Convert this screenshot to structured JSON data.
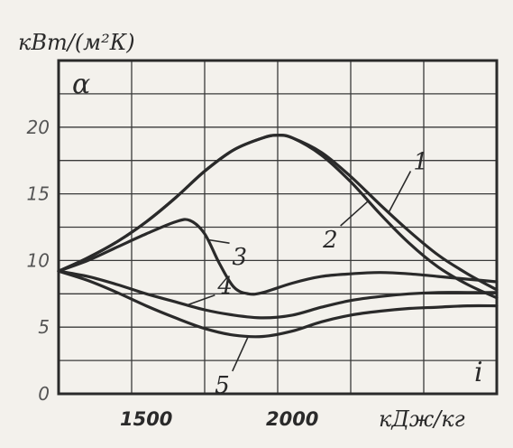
{
  "chart_data": {
    "type": "line",
    "ylabel": "кВт/(м²К)",
    "xlabel": "кДж/кг",
    "y_symbol": "α",
    "x_symbol": "i",
    "xlim": [
      1200,
      2700
    ],
    "ylim": [
      0,
      25
    ],
    "x_ticks": [
      1500,
      2000
    ],
    "x_tick_labels": [
      "1500",
      "2000"
    ],
    "y_ticks": [
      0,
      5,
      10,
      15,
      20
    ],
    "y_tick_labels": [
      "0",
      "5",
      "10",
      "15",
      "20"
    ],
    "grid": true,
    "series": [
      {
        "name": "1",
        "x": [
          1200,
          1300,
          1400,
          1500,
          1600,
          1700,
          1800,
          1900,
          1950,
          2000,
          2100,
          2200,
          2300,
          2400,
          2500,
          2600,
          2700
        ],
        "values": [
          9.2,
          10.2,
          11.4,
          12.9,
          14.7,
          16.7,
          18.3,
          19.2,
          19.4,
          19.2,
          18.1,
          16.3,
          14.2,
          12.2,
          10.4,
          9.0,
          7.8
        ]
      },
      {
        "name": "2",
        "x": [
          1200,
          1300,
          1400,
          1500,
          1600,
          1700,
          1800,
          1900,
          1950,
          2000,
          2100,
          2200,
          2300,
          2400,
          2500,
          2600,
          2700
        ],
        "values": [
          9.2,
          10.2,
          11.4,
          12.9,
          14.7,
          16.7,
          18.3,
          19.2,
          19.4,
          19.2,
          17.9,
          15.9,
          13.5,
          11.3,
          9.5,
          8.2,
          7.2
        ]
      },
      {
        "name": "3",
        "x": [
          1200,
          1300,
          1400,
          1500,
          1600,
          1650,
          1700,
          1750,
          1800,
          1850,
          1900,
          2000,
          2100,
          2200,
          2300,
          2400,
          2500,
          2600,
          2700
        ],
        "values": [
          9.2,
          10.0,
          11.0,
          12.0,
          12.9,
          13.0,
          12.0,
          9.8,
          8.0,
          7.5,
          7.6,
          8.3,
          8.8,
          9.0,
          9.1,
          9.0,
          8.8,
          8.6,
          8.4
        ]
      },
      {
        "name": "4",
        "x": [
          1200,
          1300,
          1400,
          1500,
          1600,
          1700,
          1800,
          1900,
          2000,
          2100,
          2200,
          2300,
          2400,
          2500,
          2600,
          2700
        ],
        "values": [
          9.2,
          8.8,
          8.2,
          7.5,
          6.9,
          6.3,
          5.9,
          5.7,
          5.9,
          6.5,
          7.0,
          7.3,
          7.5,
          7.6,
          7.6,
          7.6
        ]
      },
      {
        "name": "5",
        "x": [
          1200,
          1300,
          1400,
          1500,
          1600,
          1700,
          1800,
          1900,
          2000,
          2100,
          2200,
          2300,
          2400,
          2500,
          2600,
          2700
        ],
        "values": [
          9.2,
          8.5,
          7.6,
          6.6,
          5.7,
          4.9,
          4.4,
          4.3,
          4.7,
          5.4,
          5.9,
          6.2,
          6.4,
          6.5,
          6.6,
          6.6
        ]
      }
    ]
  }
}
